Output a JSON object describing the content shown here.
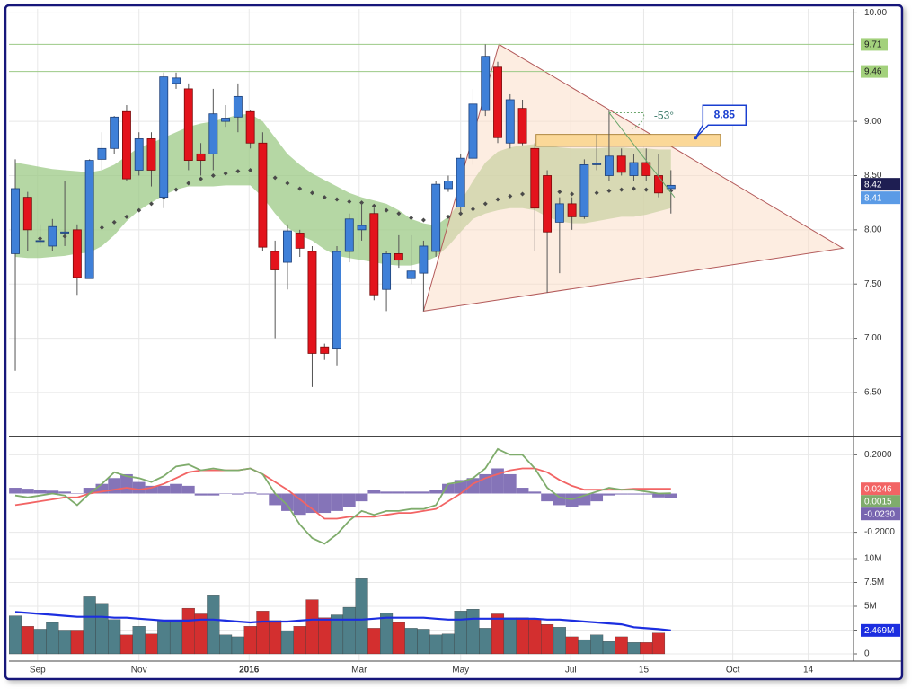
{
  "chart_data": [
    {
      "type": "candlestick",
      "x": [
        0,
        1,
        2,
        3,
        4,
        5,
        6,
        7,
        8,
        9,
        10,
        11,
        12,
        13,
        14,
        15,
        16,
        17,
        18,
        19,
        20,
        21,
        22,
        23,
        24,
        25,
        26,
        27,
        28,
        29,
        30,
        31,
        32,
        33,
        34,
        35,
        36,
        37,
        38,
        39,
        40,
        41,
        42,
        43,
        44,
        45,
        46,
        47,
        48,
        49,
        50,
        51,
        52,
        53
      ],
      "xlim": [
        -0.51,
        67.76
      ],
      "open": [
        7.78,
        8.3,
        7.9,
        7.85,
        7.97,
        8.0,
        7.55,
        8.65,
        8.75,
        9.09,
        8.55,
        8.84,
        8.3,
        9.35,
        9.3,
        8.7,
        8.7,
        9.0,
        9.04,
        9.09,
        8.8,
        7.8,
        7.7,
        7.97,
        7.8,
        6.92,
        6.9,
        7.8,
        8.0,
        8.15,
        7.45,
        7.78,
        7.55,
        7.6,
        7.8,
        8.38,
        8.21,
        8.66,
        9.1,
        9.5,
        8.8,
        9.12,
        8.75,
        8.5,
        8.07,
        8.24,
        8.12,
        8.6,
        8.5,
        8.68,
        8.5,
        8.62,
        8.5,
        8.38
      ],
      "high": [
        8.65,
        8.35,
        8.05,
        8.1,
        8.45,
        8.05,
        8.65,
        8.9,
        9.05,
        9.15,
        8.9,
        8.9,
        9.45,
        9.45,
        9.35,
        8.8,
        9.3,
        9.15,
        9.35,
        9.1,
        8.9,
        7.9,
        8.05,
        8.0,
        7.85,
        6.95,
        7.85,
        8.15,
        8.25,
        8.2,
        7.8,
        7.95,
        7.95,
        7.9,
        8.45,
        8.5,
        8.7,
        9.3,
        9.71,
        9.55,
        9.25,
        9.2,
        8.8,
        8.55,
        8.3,
        8.3,
        8.65,
        8.88,
        9.1,
        8.75,
        8.7,
        8.75,
        8.7,
        8.55
      ],
      "low": [
        6.7,
        7.8,
        7.85,
        7.8,
        7.85,
        7.4,
        7.55,
        8.55,
        8.7,
        8.45,
        8.5,
        8.4,
        8.2,
        9.3,
        8.55,
        8.5,
        8.55,
        8.95,
        8.9,
        8.75,
        7.8,
        7.0,
        7.45,
        7.75,
        6.55,
        6.8,
        6.75,
        7.7,
        7.9,
        7.35,
        7.25,
        7.65,
        7.5,
        7.25,
        7.75,
        8.35,
        8.15,
        8.6,
        9.05,
        8.8,
        8.75,
        8.78,
        7.8,
        7.42,
        7.6,
        8.0,
        8.1,
        8.55,
        8.45,
        8.5,
        8.45,
        8.45,
        8.3,
        8.15
      ],
      "close": [
        8.38,
        8.0,
        7.9,
        8.03,
        7.98,
        7.56,
        8.64,
        8.75,
        9.04,
        8.47,
        8.84,
        8.55,
        9.41,
        9.4,
        8.64,
        8.64,
        9.07,
        9.03,
        9.23,
        8.8,
        7.84,
        7.63,
        7.99,
        7.83,
        6.86,
        6.86,
        7.8,
        8.1,
        8.04,
        7.4,
        7.78,
        7.72,
        7.62,
        7.85,
        8.42,
        8.45,
        8.66,
        9.16,
        9.6,
        8.85,
        9.2,
        8.8,
        8.2,
        7.98,
        8.24,
        8.12,
        8.6,
        8.61,
        8.68,
        8.53,
        8.62,
        8.5,
        8.34,
        8.41
      ],
      "up_color": "#3f80d8",
      "down_color": "#e3131c",
      "band": {
        "color": "#9cc986",
        "upper": [
          8.62,
          8.6,
          8.58,
          8.56,
          8.55,
          8.54,
          8.53,
          8.55,
          8.6,
          8.68,
          8.76,
          8.8,
          8.85,
          8.9,
          8.95,
          8.98,
          9.0,
          9.03,
          9.06,
          9.07,
          9.0,
          8.85,
          8.7,
          8.6,
          8.52,
          8.46,
          8.4,
          8.34,
          8.3,
          8.27,
          8.24,
          8.18,
          8.1,
          8.06,
          8.04,
          8.12,
          8.26,
          8.45,
          8.62,
          8.72,
          8.76,
          8.78,
          8.79,
          8.78,
          8.76,
          8.75,
          8.75,
          8.75,
          8.76,
          8.76,
          8.75,
          8.75,
          8.74,
          8.74
        ],
        "lower": [
          7.75,
          7.74,
          7.74,
          7.75,
          7.76,
          7.78,
          7.79,
          7.85,
          7.95,
          8.08,
          8.18,
          8.25,
          8.32,
          8.37,
          8.4,
          8.4,
          8.4,
          8.41,
          8.41,
          8.41,
          8.3,
          8.15,
          8.02,
          7.95,
          7.9,
          7.82,
          7.76,
          7.74,
          7.72,
          7.7,
          7.68,
          7.67,
          7.67,
          7.7,
          7.75,
          7.85,
          7.98,
          8.1,
          8.15,
          8.18,
          8.2,
          8.2,
          8.18,
          8.12,
          8.08,
          8.06,
          8.06,
          8.08,
          8.1,
          8.12,
          8.12,
          8.14,
          8.17,
          8.2
        ]
      },
      "ma": {
        "color": "#4a4a4a",
        "values": [
          null,
          null,
          7.92,
          7.93,
          7.94,
          7.96,
          7.98,
          8.02,
          8.07,
          8.12,
          8.18,
          8.24,
          8.3,
          8.37,
          8.43,
          8.47,
          8.5,
          8.52,
          8.54,
          8.55,
          8.53,
          8.48,
          8.43,
          8.38,
          8.34,
          8.3,
          8.28,
          8.26,
          8.25,
          8.22,
          8.18,
          8.15,
          8.11,
          8.09,
          8.1,
          8.12,
          8.15,
          8.19,
          8.24,
          8.28,
          8.31,
          8.33,
          8.35,
          8.36,
          8.35,
          8.33,
          8.33,
          8.34,
          8.36,
          8.37,
          8.38,
          8.37,
          8.37,
          8.36
        ]
      },
      "ylim": [
        6.11,
        10.02
      ],
      "yticks": [
        {
          "value": 10,
          "label": "10.00"
        },
        {
          "value": 9,
          "label": "9.00"
        },
        {
          "value": 8.5,
          "label": "8.50"
        },
        {
          "value": 8,
          "label": "8.00"
        },
        {
          "value": 7.5,
          "label": "7.50"
        },
        {
          "value": 7,
          "label": "7.00"
        },
        {
          "value": 6.5,
          "label": "6.50"
        }
      ],
      "levels": [
        9.71,
        9.46
      ],
      "triangle": {
        "x": [
          39.1,
          33.0,
          66.9
        ],
        "y": [
          9.71,
          7.25,
          7.83
        ]
      },
      "zone": {
        "x": [
          42.1,
          57.0
        ],
        "y": [
          8.88,
          8.77
        ]
      },
      "trend": {
        "x": [
          48.0,
          53.3
        ],
        "y": [
          9.08,
          8.3
        ],
        "label": "-53°"
      },
      "callout": {
        "x": 55.0,
        "value": 8.85
      },
      "price_tags": [
        {
          "value": 8.42,
          "color": "#1e1e52"
        },
        {
          "value": 8.41,
          "color": "#5b9be6"
        }
      ]
    },
    {
      "type": "macd",
      "ylim": [
        -0.29,
        0.29
      ],
      "yticks": [
        {
          "value": 0.2,
          "label": "0.2000"
        },
        {
          "value": -0.2,
          "label": "-0.2000"
        }
      ],
      "series": [
        {
          "kind": "line",
          "color": "#f26464",
          "last_label": "0.0246",
          "values": [
            -0.06,
            -0.05,
            -0.04,
            -0.03,
            -0.02,
            -0.02,
            0.0,
            0.01,
            0.02,
            0.03,
            0.02,
            0.03,
            0.05,
            0.08,
            0.11,
            0.12,
            0.12,
            0.12,
            0.12,
            0.13,
            0.1,
            0.06,
            0.02,
            -0.03,
            -0.08,
            -0.13,
            -0.13,
            -0.12,
            -0.12,
            -0.12,
            -0.11,
            -0.1,
            -0.1,
            -0.09,
            -0.08,
            -0.04,
            0.0,
            0.05,
            0.08,
            0.1,
            0.12,
            0.13,
            0.13,
            0.11,
            0.07,
            0.04,
            0.02,
            0.02,
            0.02,
            0.02,
            0.025,
            0.025,
            0.025,
            0.0246
          ]
        },
        {
          "kind": "line",
          "color": "#7fac6c",
          "last_label": "0.0015",
          "values": [
            -0.01,
            -0.02,
            -0.01,
            0.0,
            -0.01,
            -0.06,
            0.0,
            0.05,
            0.11,
            0.09,
            0.08,
            0.06,
            0.09,
            0.14,
            0.15,
            0.12,
            0.13,
            0.12,
            0.12,
            0.13,
            0.1,
            0.0,
            -0.06,
            -0.16,
            -0.23,
            -0.26,
            -0.21,
            -0.14,
            -0.09,
            -0.11,
            -0.09,
            -0.09,
            -0.08,
            -0.08,
            -0.06,
            0.05,
            0.06,
            0.08,
            0.13,
            0.23,
            0.2,
            0.2,
            0.13,
            0.03,
            -0.02,
            -0.03,
            -0.01,
            0.01,
            0.03,
            0.02,
            0.02,
            0.01,
            0.0,
            0.0015
          ]
        },
        {
          "kind": "bar",
          "color": "#7865b0",
          "last_label": "-0.0230",
          "values": [
            0.03,
            0.025,
            0.02,
            0.015,
            0.01,
            0.0,
            0.03,
            0.05,
            0.08,
            0.1,
            0.06,
            0.04,
            0.04,
            0.05,
            0.04,
            -0.01,
            -0.01,
            0.0,
            -0.005,
            0.005,
            -0.005,
            -0.06,
            -0.09,
            -0.11,
            -0.1,
            -0.1,
            -0.09,
            -0.07,
            -0.04,
            0.02,
            0.01,
            0.01,
            0.01,
            0.01,
            0.02,
            0.05,
            0.07,
            0.08,
            0.1,
            0.13,
            0.1,
            0.03,
            0.01,
            -0.04,
            -0.06,
            -0.07,
            -0.06,
            -0.04,
            -0.01,
            -0.005,
            -0.005,
            -0.005,
            -0.02,
            -0.023
          ]
        }
      ]
    },
    {
      "type": "volume",
      "ylim": [
        -0.66,
        10.66
      ],
      "yticks": [
        0,
        {
          "value": 2.5,
          "label": "2.5M"
        },
        {
          "value": 5,
          "label": "5M"
        },
        {
          "value": 7.5,
          "label": "7.5M"
        },
        {
          "value": 10,
          "label": "10M"
        }
      ],
      "up_color": "#4f7f89",
      "down_color": "#d32f2f",
      "values": [
        4.0,
        2.9,
        2.6,
        3.3,
        2.5,
        2.5,
        6.0,
        5.3,
        3.6,
        2.0,
        2.9,
        2.1,
        3.5,
        3.4,
        4.8,
        4.2,
        6.2,
        2.0,
        1.8,
        2.9,
        4.5,
        3.5,
        2.4,
        2.9,
        5.7,
        3.8,
        4.1,
        4.9,
        7.9,
        2.7,
        4.3,
        3.3,
        2.7,
        2.6,
        2.0,
        2.1,
        4.5,
        4.7,
        2.7,
        4.2,
        3.8,
        3.8,
        3.6,
        3.1,
        2.8,
        1.8,
        1.5,
        2.0,
        1.3,
        1.8,
        1.2,
        1.2,
        2.2,
        null
      ],
      "ma": {
        "color": "#1c2ee0",
        "last_label": "2.469M",
        "values": [
          4.4,
          4.3,
          4.2,
          4.1,
          4.0,
          3.9,
          3.9,
          3.9,
          3.8,
          3.8,
          3.7,
          3.6,
          3.5,
          3.5,
          3.5,
          3.6,
          3.6,
          3.5,
          3.4,
          3.3,
          3.4,
          3.4,
          3.4,
          3.5,
          3.6,
          3.6,
          3.6,
          3.6,
          3.6,
          3.7,
          3.8,
          3.8,
          3.8,
          3.8,
          3.7,
          3.6,
          3.6,
          3.7,
          3.7,
          3.7,
          3.7,
          3.7,
          3.7,
          3.6,
          3.6,
          3.5,
          3.4,
          3.3,
          3.2,
          3.1,
          2.8,
          2.7,
          2.6,
          2.469
        ]
      },
      "xticks": [
        {
          "value": 1.8,
          "label": "Sep"
        },
        {
          "value": 10.0,
          "label": "Nov"
        },
        {
          "value": 18.9,
          "label": "2016"
        },
        {
          "value": 27.8,
          "label": "Mar"
        },
        {
          "value": 36.0,
          "label": "May"
        },
        {
          "value": 44.9,
          "label": "Jul"
        },
        {
          "value": 50.8,
          "label": "15"
        },
        {
          "value": 58.0,
          "label": "Oct"
        },
        {
          "value": 64.1,
          "label": "14"
        }
      ]
    }
  ]
}
